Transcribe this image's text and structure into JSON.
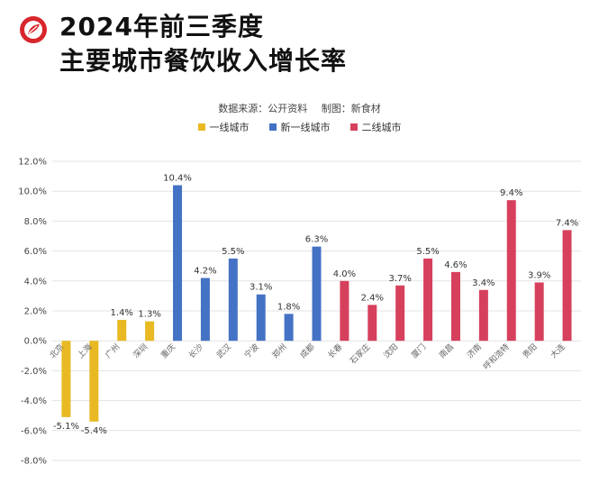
{
  "header": {
    "title_line1": "2024年前三季度",
    "title_line2": "主要城市餐饮收入增长率",
    "source": "数据来源：公开资料",
    "maker": "制图：新食材"
  },
  "colors": {
    "tier1": "#e8b923",
    "new_tier1": "#4472c4",
    "tier2": "#d6405d",
    "grid": "#e3e3e3",
    "logo": "#d8262d"
  },
  "chart_data": {
    "type": "bar",
    "categories": [
      "北京",
      "上海",
      "广州",
      "深圳",
      "重庆",
      "长沙",
      "武汉",
      "宁波",
      "郑州",
      "成都",
      "长春",
      "石家庄",
      "沈阳",
      "厦门",
      "南昌",
      "济南",
      "呼和浩特",
      "贵阳",
      "大连"
    ],
    "values": [
      -5.1,
      -5.4,
      1.4,
      1.3,
      10.4,
      4.2,
      5.5,
      3.1,
      1.8,
      6.3,
      4.0,
      2.4,
      3.7,
      5.5,
      4.6,
      3.4,
      9.4,
      3.9,
      7.4
    ],
    "data_labels": [
      "-5.1%",
      "-5.4%",
      "1.4%",
      "1.3%",
      "10.4%",
      "4.2%",
      "5.5%",
      "3.1%",
      "1.8%",
      "6.3%",
      "4.0%",
      "2.4%",
      "3.7%",
      "5.5%",
      "4.6%",
      "3.4%",
      "9.4%",
      "3.9%",
      "7.4%"
    ],
    "groups": [
      "tier1",
      "tier1",
      "tier1",
      "tier1",
      "new_tier1",
      "new_tier1",
      "new_tier1",
      "new_tier1",
      "new_tier1",
      "new_tier1",
      "tier2",
      "tier2",
      "tier2",
      "tier2",
      "tier2",
      "tier2",
      "tier2",
      "tier2",
      "tier2"
    ],
    "legend": [
      {
        "key": "tier1",
        "label": "一线城市"
      },
      {
        "key": "new_tier1",
        "label": "新一线城市"
      },
      {
        "key": "tier2",
        "label": "二线城市"
      }
    ],
    "ylim": [
      -8,
      12
    ],
    "yticks": [
      -8,
      -6,
      -4,
      -2,
      0,
      2,
      4,
      6,
      8,
      10,
      12
    ],
    "ytick_labels": [
      "-8.0%",
      "-6.0%",
      "-4.0%",
      "-2.0%",
      "0.0%",
      "2.0%",
      "4.0%",
      "6.0%",
      "8.0%",
      "10.0%",
      "12.0%"
    ],
    "grid": true,
    "legend_position": "top-center"
  }
}
